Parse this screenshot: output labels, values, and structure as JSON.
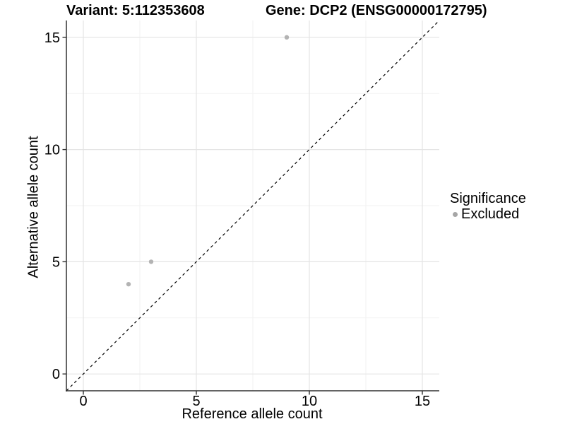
{
  "figure": {
    "title_left": "Variant: 5:112353608",
    "title_right": "Gene: DCP2 (ENSG00000172795)"
  },
  "legend": {
    "title": "Significance",
    "items": [
      {
        "label": "Excluded",
        "color": "#a6a6a6"
      }
    ]
  },
  "chart_data": {
    "type": "scatter",
    "title_left": "Variant: 5:112353608",
    "title_right": "Gene: DCP2 (ENSG00000172795)",
    "xlabel": "Reference allele count",
    "ylabel": "Alternative allele count",
    "xlim": [
      -0.75,
      15.75
    ],
    "ylim": [
      -0.75,
      15.75
    ],
    "xticks": [
      0,
      5,
      10,
      15
    ],
    "yticks": [
      0,
      5,
      10,
      15
    ],
    "x_minor_gridlines": [
      2.5,
      7.5,
      12.5
    ],
    "y_minor_gridlines": [
      2.5,
      7.5,
      12.5
    ],
    "grid": true,
    "legend_position": "right",
    "series": [
      {
        "name": "Excluded",
        "color": "#b3b3b3",
        "points": [
          {
            "x": 2,
            "y": 4
          },
          {
            "x": 3,
            "y": 5
          },
          {
            "x": 9,
            "y": 15
          }
        ]
      }
    ],
    "reference_line": {
      "kind": "identity",
      "style": "dashed",
      "color": "#000000"
    },
    "style": {
      "major_grid_color": "#e4e4e4",
      "minor_grid_color": "#f1f1f1",
      "axis_line_color": "#303030",
      "tick_color": "#303030",
      "tick_label_color": "#000000",
      "point_radius": 3.2,
      "legend_marker_color": "#a6a6a6"
    }
  }
}
